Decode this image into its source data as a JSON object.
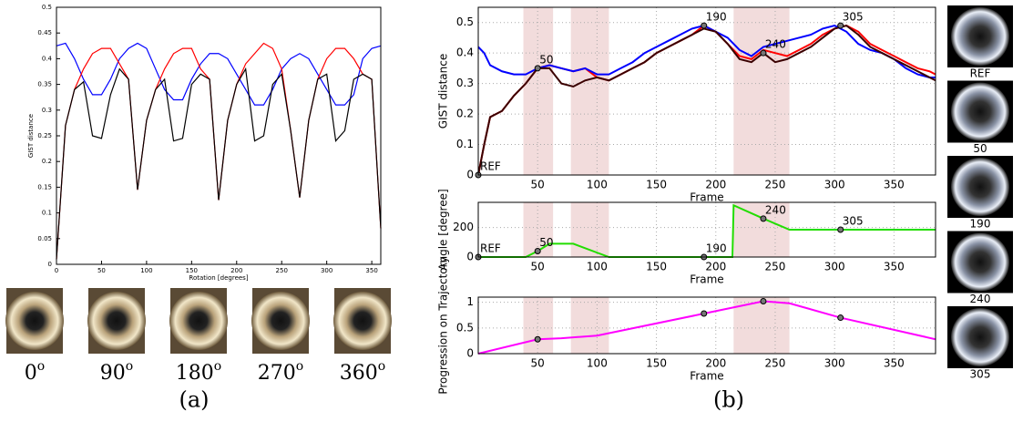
{
  "chart_data": [
    {
      "type": "line",
      "xlabel": "Rotation [degrees]",
      "ylabel": "GIST distance",
      "x": [
        0,
        10,
        20,
        30,
        40,
        50,
        60,
        70,
        80,
        90,
        100,
        110,
        120,
        130,
        140,
        150,
        160,
        170,
        180,
        190,
        200,
        210,
        220,
        230,
        240,
        250,
        260,
        270,
        280,
        290,
        300,
        310,
        320,
        330,
        340,
        350,
        360
      ],
      "series": [
        {
          "color": "#0000ff",
          "values": [
            0.425,
            0.43,
            0.4,
            0.36,
            0.33,
            0.33,
            0.36,
            0.4,
            0.42,
            0.43,
            0.42,
            0.38,
            0.34,
            0.32,
            0.32,
            0.36,
            0.39,
            0.41,
            0.41,
            0.4,
            0.37,
            0.34,
            0.31,
            0.31,
            0.34,
            0.38,
            0.4,
            0.41,
            0.4,
            0.37,
            0.34,
            0.31,
            0.31,
            0.33,
            0.4,
            0.42,
            0.425
          ]
        },
        {
          "color": "#ff0000",
          "values": [
            0.01,
            0.27,
            0.34,
            0.38,
            0.41,
            0.42,
            0.42,
            0.39,
            0.36,
            0.145,
            0.28,
            0.34,
            0.38,
            0.41,
            0.42,
            0.42,
            0.38,
            0.36,
            0.125,
            0.28,
            0.35,
            0.39,
            0.41,
            0.43,
            0.42,
            0.38,
            0.26,
            0.13,
            0.28,
            0.36,
            0.4,
            0.42,
            0.42,
            0.4,
            0.37,
            0.36,
            0.07
          ]
        },
        {
          "color": "#000000",
          "values": [
            0.01,
            0.27,
            0.34,
            0.355,
            0.25,
            0.245,
            0.33,
            0.38,
            0.36,
            0.145,
            0.28,
            0.34,
            0.36,
            0.24,
            0.245,
            0.35,
            0.37,
            0.36,
            0.125,
            0.28,
            0.35,
            0.38,
            0.24,
            0.25,
            0.35,
            0.37,
            0.26,
            0.13,
            0.28,
            0.36,
            0.37,
            0.24,
            0.26,
            0.36,
            0.37,
            0.36,
            0.07
          ]
        }
      ],
      "xlim": [
        0,
        360
      ],
      "ylim": [
        0,
        0.5
      ],
      "xticks": [
        0,
        50,
        100,
        150,
        200,
        250,
        300,
        350
      ],
      "yticks": [
        0,
        0.05,
        0.1,
        0.15,
        0.2,
        0.25,
        0.3,
        0.35,
        0.4,
        0.45,
        0.5
      ],
      "grid": false
    },
    {
      "type": "line",
      "xlabel": "Frame",
      "ylabel": "GIST distance",
      "x": [
        0,
        5,
        10,
        20,
        30,
        40,
        50,
        60,
        70,
        80,
        90,
        100,
        110,
        120,
        130,
        140,
        150,
        160,
        170,
        180,
        190,
        200,
        210,
        220,
        230,
        240,
        250,
        260,
        270,
        280,
        290,
        300,
        310,
        320,
        330,
        340,
        350,
        360,
        370,
        380,
        385
      ],
      "series": [
        {
          "color": "#ff0000",
          "values": [
            0,
            0.1,
            0.19,
            0.21,
            0.26,
            0.3,
            0.35,
            0.36,
            0.35,
            0.34,
            0.35,
            0.32,
            0.31,
            0.33,
            0.35,
            0.37,
            0.4,
            0.42,
            0.44,
            0.46,
            0.49,
            0.47,
            0.43,
            0.39,
            0.38,
            0.41,
            0.4,
            0.39,
            0.41,
            0.43,
            0.46,
            0.48,
            0.49,
            0.47,
            0.43,
            0.41,
            0.39,
            0.37,
            0.35,
            0.34,
            0.33
          ]
        },
        {
          "color": "#0000ff",
          "values": [
            0.42,
            0.4,
            0.36,
            0.34,
            0.33,
            0.33,
            0.35,
            0.36,
            0.35,
            0.34,
            0.35,
            0.33,
            0.33,
            0.35,
            0.37,
            0.4,
            0.42,
            0.44,
            0.46,
            0.48,
            0.49,
            0.47,
            0.45,
            0.41,
            0.39,
            0.42,
            0.43,
            0.44,
            0.45,
            0.46,
            0.48,
            0.49,
            0.47,
            0.43,
            0.41,
            0.4,
            0.38,
            0.35,
            0.33,
            0.32,
            0.32
          ]
        },
        {
          "color": "#3a0000",
          "values": [
            0,
            0.1,
            0.19,
            0.21,
            0.26,
            0.3,
            0.35,
            0.35,
            0.3,
            0.29,
            0.31,
            0.32,
            0.31,
            0.33,
            0.35,
            0.37,
            0.4,
            0.42,
            0.44,
            0.46,
            0.48,
            0.47,
            0.43,
            0.38,
            0.37,
            0.4,
            0.37,
            0.38,
            0.4,
            0.42,
            0.45,
            0.48,
            0.49,
            0.46,
            0.42,
            0.4,
            0.38,
            0.36,
            0.34,
            0.32,
            0.31
          ]
        }
      ],
      "shaded_ranges": [
        [
          38,
          63
        ],
        [
          78,
          110
        ],
        [
          215,
          262
        ]
      ],
      "annotations": [
        {
          "x": 0,
          "y": 0,
          "label": "REF"
        },
        {
          "x": 50,
          "y": 0.35,
          "label": "50"
        },
        {
          "x": 190,
          "y": 0.49,
          "label": "190"
        },
        {
          "x": 240,
          "y": 0.4,
          "label": "240"
        },
        {
          "x": 305,
          "y": 0.49,
          "label": "305"
        }
      ],
      "xlim": [
        0,
        385
      ],
      "ylim": [
        0,
        0.55
      ],
      "xticks": [
        50,
        100,
        150,
        200,
        250,
        300,
        350
      ],
      "yticks": [
        0,
        0.1,
        0.2,
        0.3,
        0.4,
        0.5
      ],
      "grid": true
    },
    {
      "type": "line",
      "xlabel": "Frame",
      "ylabel": "Angle [degree]",
      "x": [
        0,
        40,
        50,
        60,
        80,
        110,
        190,
        214,
        215,
        240,
        262,
        305,
        385
      ],
      "series": [
        {
          "color": "#22dd00",
          "values": [
            0,
            0,
            40,
            90,
            90,
            0,
            0,
            0,
            350,
            260,
            185,
            185,
            185
          ]
        }
      ],
      "shaded_ranges": [
        [
          38,
          63
        ],
        [
          78,
          110
        ],
        [
          215,
          262
        ]
      ],
      "annotations": [
        {
          "x": 0,
          "y": 0,
          "label": "REF"
        },
        {
          "x": 50,
          "y": 40,
          "label": "50"
        },
        {
          "x": 190,
          "y": 0,
          "label": "190"
        },
        {
          "x": 240,
          "y": 260,
          "label": "240"
        },
        {
          "x": 305,
          "y": 185,
          "label": "305"
        }
      ],
      "xlim": [
        0,
        385
      ],
      "ylim": [
        0,
        370
      ],
      "xticks": [
        50,
        100,
        150,
        200,
        250,
        300,
        350
      ],
      "yticks": [
        0,
        200
      ],
      "grid": true
    },
    {
      "type": "line",
      "xlabel": "Frame",
      "ylabel": "Progression on Trajectory",
      "x": [
        0,
        50,
        70,
        100,
        190,
        240,
        262,
        305,
        385
      ],
      "series": [
        {
          "color": "#ff00ff",
          "values": [
            0,
            0.28,
            0.3,
            0.35,
            0.78,
            1.02,
            0.98,
            0.7,
            0.28
          ]
        }
      ],
      "shaded_ranges": [
        [
          38,
          63
        ],
        [
          78,
          110
        ],
        [
          215,
          262
        ]
      ],
      "annotations": [
        {
          "x": 50,
          "y": 0.28
        },
        {
          "x": 190,
          "y": 0.78
        },
        {
          "x": 240,
          "y": 1.02
        },
        {
          "x": 305,
          "y": 0.7
        }
      ],
      "xlim": [
        0,
        385
      ],
      "ylim": [
        0,
        1.1
      ],
      "xticks": [
        50,
        100,
        150,
        200,
        250,
        300,
        350
      ],
      "yticks": [
        0,
        0.5,
        1
      ],
      "grid": true
    }
  ],
  "rotation_images": [
    {
      "base": "0",
      "sup": "o"
    },
    {
      "base": "90",
      "sup": "o"
    },
    {
      "base": "180",
      "sup": "o"
    },
    {
      "base": "270",
      "sup": "o"
    },
    {
      "base": "360",
      "sup": "o"
    }
  ],
  "frame_images": [
    "REF",
    "50",
    "190",
    "240",
    "305"
  ],
  "panel_labels": [
    "(a)",
    "(b)"
  ]
}
